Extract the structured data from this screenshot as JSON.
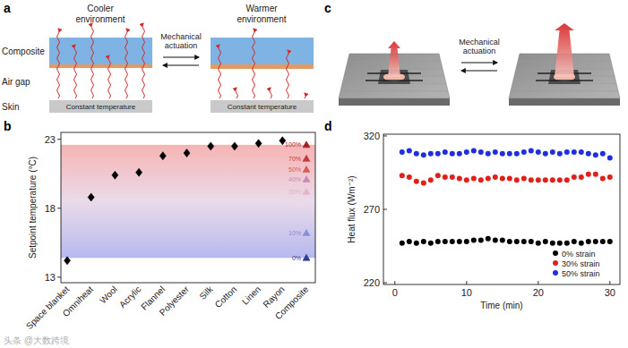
{
  "panels": {
    "a": {
      "label": "a",
      "left_title": "Cooler environment",
      "right_title": "Warmer environment",
      "actuation": "Mechanical actuation",
      "layers": [
        "Composite",
        "Air gap",
        "Skin"
      ],
      "skin_text": "Constant temperature"
    },
    "b": {
      "label": "b"
    },
    "c": {
      "label": "c",
      "actuation": "Mechanical actuation"
    },
    "d": {
      "label": "d"
    }
  },
  "watermark": "头条 @大数跨境",
  "chart_data": [
    {
      "type": "scatter",
      "y_label": "Setpoint temperature (°C)",
      "categories": [
        "Space blanket",
        "Omniheat",
        "Wool",
        "Acrylic",
        "Flannel",
        "Polyester",
        "Silk",
        "Cotton",
        "Linen",
        "Rayon",
        "Composite"
      ],
      "ylim": [
        12.6,
        23.5
      ],
      "yticks": [
        13,
        18,
        23
      ],
      "series": [
        {
          "color": "#000000",
          "marker": "diamond",
          "values": [
            14.2,
            18.8,
            20.4,
            20.6,
            21.8,
            22.0,
            22.5,
            22.5,
            22.7,
            22.9,
            null
          ]
        },
        {
          "name": "100%",
          "color": "#a51e1e",
          "marker": "triangle",
          "values": [
            null,
            null,
            null,
            null,
            null,
            null,
            null,
            null,
            null,
            null,
            22.6
          ]
        },
        {
          "name": "70%",
          "color": "#c43a3a",
          "marker": "triangle",
          "values": [
            null,
            null,
            null,
            null,
            null,
            null,
            null,
            null,
            null,
            null,
            21.6
          ]
        },
        {
          "name": "50%",
          "color": "#d45a5a",
          "marker": "triangle",
          "values": [
            null,
            null,
            null,
            null,
            null,
            null,
            null,
            null,
            null,
            null,
            20.8
          ]
        },
        {
          "name": "40%",
          "color": "#c98ab8",
          "marker": "triangle",
          "values": [
            null,
            null,
            null,
            null,
            null,
            null,
            null,
            null,
            null,
            null,
            20.1
          ]
        },
        {
          "name": "30%",
          "color": "#e3b3d3",
          "marker": "triangle",
          "values": [
            null,
            null,
            null,
            null,
            null,
            null,
            null,
            null,
            null,
            null,
            19.2
          ]
        },
        {
          "name": "10%",
          "color": "#8a8fd8",
          "marker": "triangle",
          "values": [
            null,
            null,
            null,
            null,
            null,
            null,
            null,
            null,
            null,
            null,
            16.2
          ]
        },
        {
          "name": "0%",
          "color": "#2b3f8f",
          "marker": "triangle",
          "values": [
            null,
            null,
            null,
            null,
            null,
            null,
            null,
            null,
            null,
            null,
            14.4
          ]
        }
      ]
    },
    {
      "type": "scatter",
      "x_label": "Time (min)",
      "y_label": "Heat flux (Wm⁻²)",
      "x": [
        1,
        2,
        3,
        4,
        5,
        6,
        7,
        8,
        9,
        10,
        11,
        12,
        13,
        14,
        15,
        16,
        17,
        18,
        19,
        20,
        21,
        22,
        23,
        24,
        25,
        26,
        27,
        28,
        29,
        30
      ],
      "xlim": [
        -1.6,
        31.4
      ],
      "xticks": [
        0,
        10,
        20,
        30
      ],
      "ylim": [
        218.8,
        321.2
      ],
      "yticks": [
        220,
        270,
        320
      ],
      "legend": "lower right",
      "series": [
        {
          "name": "0% strain",
          "color": "#000000",
          "marker": "circle",
          "values": [
            247,
            248,
            247,
            248,
            247,
            248,
            248,
            248,
            248,
            248,
            249,
            249,
            250,
            249,
            249,
            248,
            248,
            248,
            248,
            247,
            248,
            247,
            247,
            247,
            248,
            247,
            248,
            248,
            248,
            248
          ]
        },
        {
          "name": "30% strain",
          "color": "#e0201b",
          "marker": "circle",
          "values": [
            293,
            292,
            289,
            288,
            290,
            293,
            292,
            292,
            291,
            290,
            291,
            290,
            291,
            292,
            291,
            291,
            290,
            291,
            290,
            290,
            290,
            290,
            290,
            290,
            292,
            292,
            294,
            294,
            291,
            292
          ]
        },
        {
          "name": "50% strain",
          "color": "#1f2fe0",
          "marker": "circle",
          "values": [
            309,
            310,
            308,
            307,
            308,
            308,
            309,
            308,
            308,
            309,
            310,
            309,
            308,
            309,
            308,
            308,
            308,
            309,
            310,
            309,
            308,
            309,
            308,
            309,
            309,
            309,
            308,
            307,
            308,
            305
          ]
        }
      ]
    }
  ]
}
